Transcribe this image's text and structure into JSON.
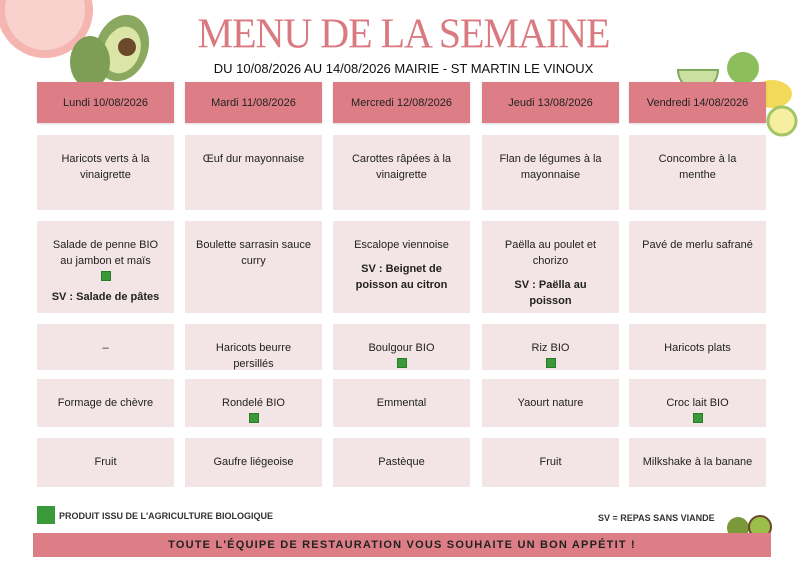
{
  "header": {
    "title": "MENU DE LA SEMAINE",
    "subtitle": "DU 10/08/2026 AU 14/08/2026 MAIRIE - ST MARTIN LE VINOUX"
  },
  "days": [
    "Lundi 10/08/2026",
    "Mardi 11/08/2026",
    "Mercredi 12/08/2026",
    "Jeudi 13/08/2026",
    "Vendredi 14/08/2026"
  ],
  "rows": [
    [
      {
        "text": "Haricots verts à la vinaigrette"
      },
      {
        "text": "Œuf dur mayonnaise"
      },
      {
        "text": "Carottes râpées à la vinaigrette"
      },
      {
        "text": "Flan de légumes à la mayonnaise"
      },
      {
        "text": "Concombre à la menthe"
      }
    ],
    [
      {
        "text": "Salade de penne BIO au jambon et maïs",
        "bio": true,
        "sv": "SV : Salade de pâtes"
      },
      {
        "text": "Boulette sarrasin sauce curry"
      },
      {
        "text": "Escalope viennoise",
        "sv": "SV : Beignet de poisson au citron"
      },
      {
        "text": "Paëlla au poulet et chorizo",
        "sv": "SV : Paëlla au poisson"
      },
      {
        "text": "Pavé de merlu safrané"
      }
    ],
    [
      {
        "text": "–"
      },
      {
        "text": "Haricots beurre persillés"
      },
      {
        "text": "Boulgour BIO",
        "bio": true
      },
      {
        "text": "Riz BIO",
        "bio": true
      },
      {
        "text": "Haricots plats"
      }
    ],
    [
      {
        "text": "Formage de chèvre"
      },
      {
        "text": "Rondelé BIO",
        "bio": true
      },
      {
        "text": "Emmental"
      },
      {
        "text": "Yaourt nature"
      },
      {
        "text": "Croc lait BIO",
        "bio": true
      }
    ],
    [
      {
        "text": "Fruit"
      },
      {
        "text": "Gaufre liégeoise"
      },
      {
        "text": "Pastèque"
      },
      {
        "text": "Fruit"
      },
      {
        "text": "Milkshake à la banane"
      }
    ]
  ],
  "footer": {
    "bio_note": "PRODUIT ISSU DE L'AGRICULTURE BIOLOGIQUE",
    "sv_note": "SV = REPAS SANS VIANDE",
    "banner": "TOUTE L'ÉQUIPE DE RESTAURATION VOUS SOUHAITE UN BON APPÉTIT !"
  }
}
